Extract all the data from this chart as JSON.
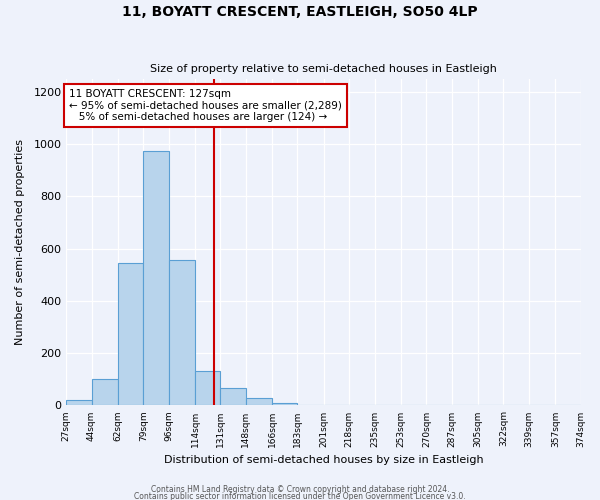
{
  "title": "11, BOYATT CRESCENT, EASTLEIGH, SO50 4LP",
  "subtitle": "Size of property relative to semi-detached houses in Eastleigh",
  "xlabel": "Distribution of semi-detached houses by size in Eastleigh",
  "ylabel": "Number of semi-detached properties",
  "bin_edges": [
    27,
    44,
    62,
    79,
    96,
    114,
    131,
    148,
    166,
    183,
    201,
    218,
    235,
    253,
    270,
    287,
    305,
    322,
    339,
    357,
    374
  ],
  "bar_heights": [
    20,
    100,
    545,
    975,
    555,
    130,
    65,
    30,
    10,
    0,
    0,
    0,
    0,
    0,
    0,
    0,
    0,
    0,
    0,
    0
  ],
  "bar_color": "#b8d4ec",
  "bar_edge_color": "#5a9fd4",
  "property_value": 127,
  "vline_color": "#cc0000",
  "annotation_line1": "11 BOYATT CRESCENT: 127sqm",
  "annotation_line2": "← 95% of semi-detached houses are smaller (2,289)",
  "annotation_line3": "   5% of semi-detached houses are larger (124) →",
  "annotation_box_color": "#ffffff",
  "annotation_box_edge_color": "#cc0000",
  "ylim": [
    0,
    1250
  ],
  "yticks": [
    0,
    200,
    400,
    600,
    800,
    1000,
    1200
  ],
  "background_color": "#eef2fb",
  "grid_color": "#ffffff",
  "footer_line1": "Contains HM Land Registry data © Crown copyright and database right 2024.",
  "footer_line2": "Contains public sector information licensed under the Open Government Licence v3.0."
}
